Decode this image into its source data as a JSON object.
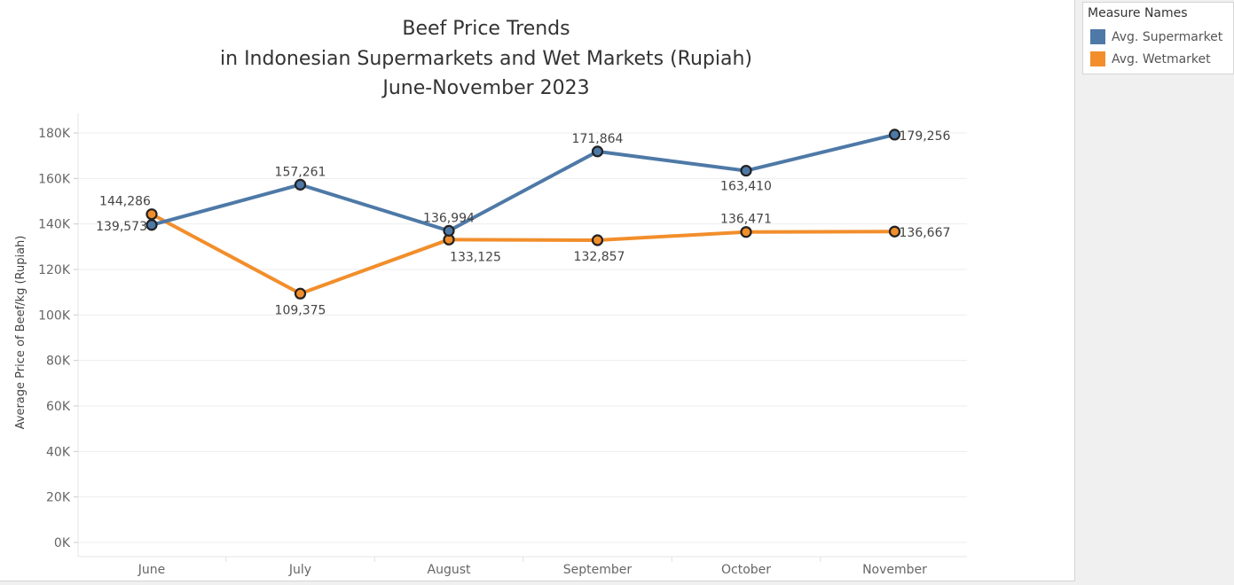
{
  "chart_data": {
    "type": "line",
    "title": [
      "Beef Price Trends",
      "in Indonesian Supermarkets and Wet Markets (Rupiah)",
      "June-November 2023"
    ],
    "categories": [
      "June",
      "July",
      "August",
      "September",
      "October",
      "November"
    ],
    "ylabel": "Average Price of Beef/kg (Rupiah)",
    "ylim": [
      0,
      180000
    ],
    "yticks": [
      0,
      20000,
      40000,
      60000,
      80000,
      100000,
      120000,
      140000,
      160000,
      180000
    ],
    "ytick_labels": [
      "0K",
      "20K",
      "40K",
      "60K",
      "80K",
      "100K",
      "120K",
      "140K",
      "160K",
      "180K"
    ],
    "grid": true,
    "legend_position": "right",
    "legend_title": "Measure Names",
    "series": [
      {
        "name": "Avg. Supermarket",
        "color": "#4e79a7",
        "values": [
          139573,
          157261,
          136994,
          171864,
          163410,
          179256
        ],
        "labels": [
          "139,573",
          "157,261",
          "136,994",
          "171,864",
          "163,410",
          "179,256"
        ]
      },
      {
        "name": "Avg. Wetmarket",
        "color": "#f28e2b",
        "values": [
          144286,
          109375,
          133125,
          132857,
          136471,
          136667
        ],
        "labels": [
          "144,286",
          "109,375",
          "133,125",
          "132,857",
          "136,471",
          "136,667"
        ]
      }
    ]
  }
}
